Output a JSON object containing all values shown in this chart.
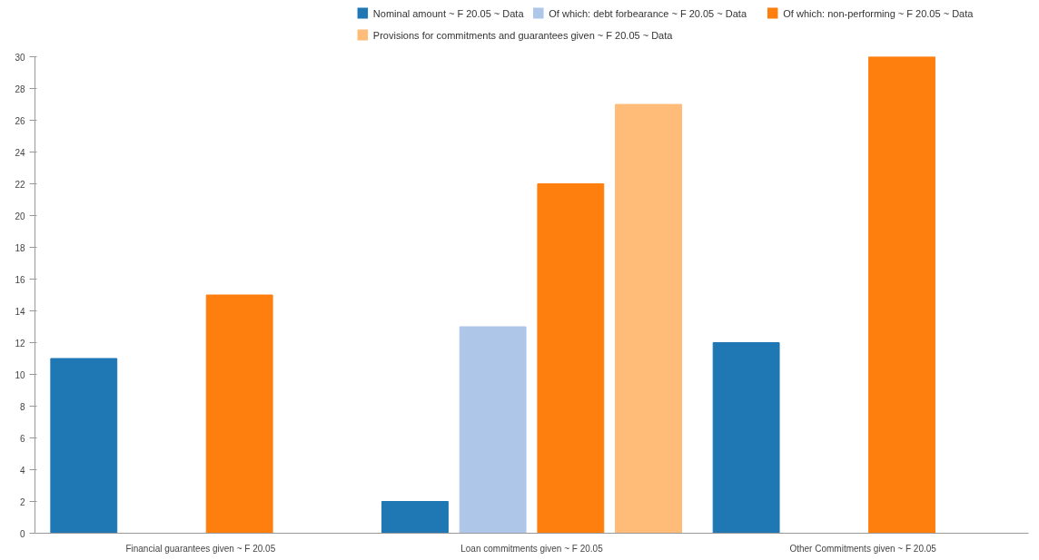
{
  "chart_data": {
    "type": "bar",
    "categories": [
      "Financial guarantees given ~ F 20.05",
      "Loan commitments given ~ F 20.05",
      "Other Commitments given ~ F 20.05"
    ],
    "series": [
      {
        "name": "Nominal amount ~ F 20.05 ~ Data",
        "color": "#1f77b4",
        "values": [
          11,
          2,
          12
        ]
      },
      {
        "name": "Of which: debt forbearance ~ F 20.05 ~ Data",
        "color": "#aec7e8",
        "values": [
          0,
          13,
          0
        ]
      },
      {
        "name": "Of which: non-performing ~ F 20.05 ~ Data",
        "color": "#ff7f0e",
        "values": [
          15,
          22,
          30
        ]
      },
      {
        "name": "Provisions for commitments and guarantees given ~ F 20.05 ~ Data",
        "color": "#ffbb78",
        "values": [
          0,
          27,
          0
        ]
      }
    ],
    "ylim": [
      0,
      30
    ],
    "yticks": [
      0,
      2,
      4,
      6,
      8,
      10,
      12,
      14,
      16,
      18,
      20,
      22,
      24,
      26,
      28,
      30
    ],
    "grid": false,
    "legend": "top right"
  }
}
